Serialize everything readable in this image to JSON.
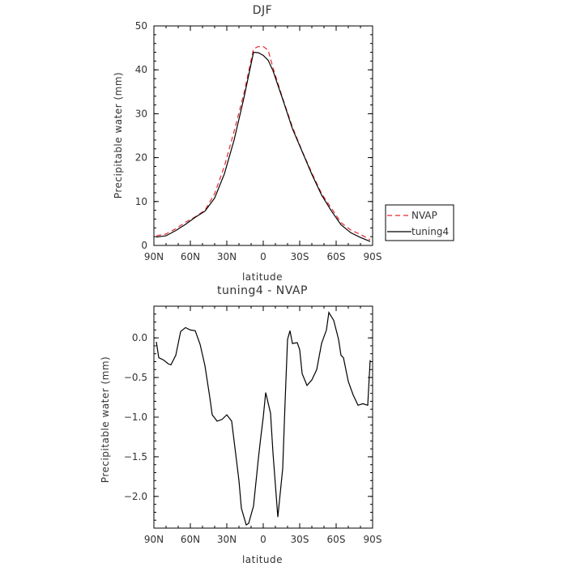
{
  "chart_data": [
    {
      "type": "line",
      "title": "DJF",
      "xlabel": "latitude",
      "ylabel": "Precipitable water (mm)",
      "xlim": [
        90,
        -90
      ],
      "ylim": [
        0,
        50
      ],
      "xticks": [
        90,
        60,
        30,
        0,
        -30,
        -60,
        -90
      ],
      "xtick_labels": [
        "90N",
        "60N",
        "30N",
        "0",
        "30S",
        "60S",
        "90S"
      ],
      "yticks": [
        0,
        10,
        20,
        30,
        40,
        50
      ],
      "ytick_labels": [
        "0",
        "10",
        "20",
        "30",
        "40",
        "50"
      ],
      "legend_position": "right",
      "x": [
        88,
        80,
        72,
        64,
        56,
        48,
        40,
        32,
        24,
        16,
        8,
        4,
        0,
        -4,
        -8,
        -16,
        -24,
        -32,
        -40,
        -48,
        -56,
        -64,
        -72,
        -80,
        -88
      ],
      "series": [
        {
          "name": "NVAP",
          "color": "#e8262d",
          "dash": "6,4",
          "values": [
            2.2,
            2.6,
            3.8,
            5.3,
            6.5,
            8.0,
            11.8,
            18.0,
            26.0,
            34.5,
            44.8,
            45.3,
            45.3,
            44.5,
            40.5,
            33.5,
            27.0,
            21.5,
            16.5,
            11.8,
            8.5,
            5.2,
            3.5,
            2.5,
            1.3
          ]
        },
        {
          "name": "tuning4",
          "color": "#000000",
          "dash": "",
          "values": [
            1.9,
            2.2,
            3.4,
            4.8,
            6.4,
            7.8,
            10.8,
            16.3,
            24.0,
            33.5,
            44.0,
            43.9,
            43.3,
            42.2,
            39.8,
            33.3,
            26.6,
            21.4,
            16.2,
            11.5,
            7.9,
            4.7,
            2.9,
            1.8,
            0.9
          ]
        }
      ]
    },
    {
      "type": "line",
      "title": "tuning4 - NVAP",
      "xlabel": "latitude",
      "ylabel": "Precipitable water (mm)",
      "xlim": [
        90,
        -90
      ],
      "ylim": [
        -2.4,
        0.4
      ],
      "xticks": [
        90,
        60,
        30,
        0,
        -30,
        -60,
        -90
      ],
      "xtick_labels": [
        "90N",
        "60N",
        "30N",
        "0",
        "30S",
        "60S",
        "90S"
      ],
      "yticks": [
        0.0,
        -0.5,
        -1.0,
        -1.5,
        -2.0
      ],
      "ytick_labels": [
        "0.0",
        "−0.5",
        "−1.0",
        "−1.5",
        "−2.0"
      ],
      "x": [
        88,
        86,
        82,
        78,
        76,
        72,
        68,
        64,
        60,
        56,
        52,
        48,
        44,
        42,
        38,
        34,
        30,
        26,
        22,
        20,
        18,
        14,
        12,
        8,
        4,
        2,
        0,
        -2,
        -6,
        -8,
        -12,
        -16,
        -18,
        -20,
        -22,
        -24,
        -28,
        -30,
        -32,
        -36,
        -40,
        -44,
        -48,
        -52,
        -54,
        -58,
        -62,
        -64,
        -66,
        -70,
        -74,
        -78,
        -82,
        -86,
        -88
      ],
      "series": [
        {
          "name": "",
          "color": "#000000",
          "dash": "",
          "values": [
            -0.05,
            -0.25,
            -0.28,
            -0.33,
            -0.34,
            -0.22,
            0.08,
            0.13,
            0.1,
            0.09,
            -0.08,
            -0.35,
            -0.75,
            -0.97,
            -1.05,
            -1.03,
            -0.97,
            -1.05,
            -1.55,
            -1.8,
            -2.15,
            -2.36,
            -2.34,
            -2.12,
            -1.52,
            -1.25,
            -1.0,
            -0.69,
            -0.95,
            -1.45,
            -2.26,
            -1.65,
            -0.8,
            -0.02,
            0.09,
            -0.07,
            -0.06,
            -0.15,
            -0.45,
            -0.6,
            -0.53,
            -0.4,
            -0.07,
            0.1,
            0.32,
            0.22,
            -0.02,
            -0.22,
            -0.25,
            -0.55,
            -0.72,
            -0.85,
            -0.83,
            -0.85,
            -0.28
          ]
        }
      ]
    }
  ]
}
